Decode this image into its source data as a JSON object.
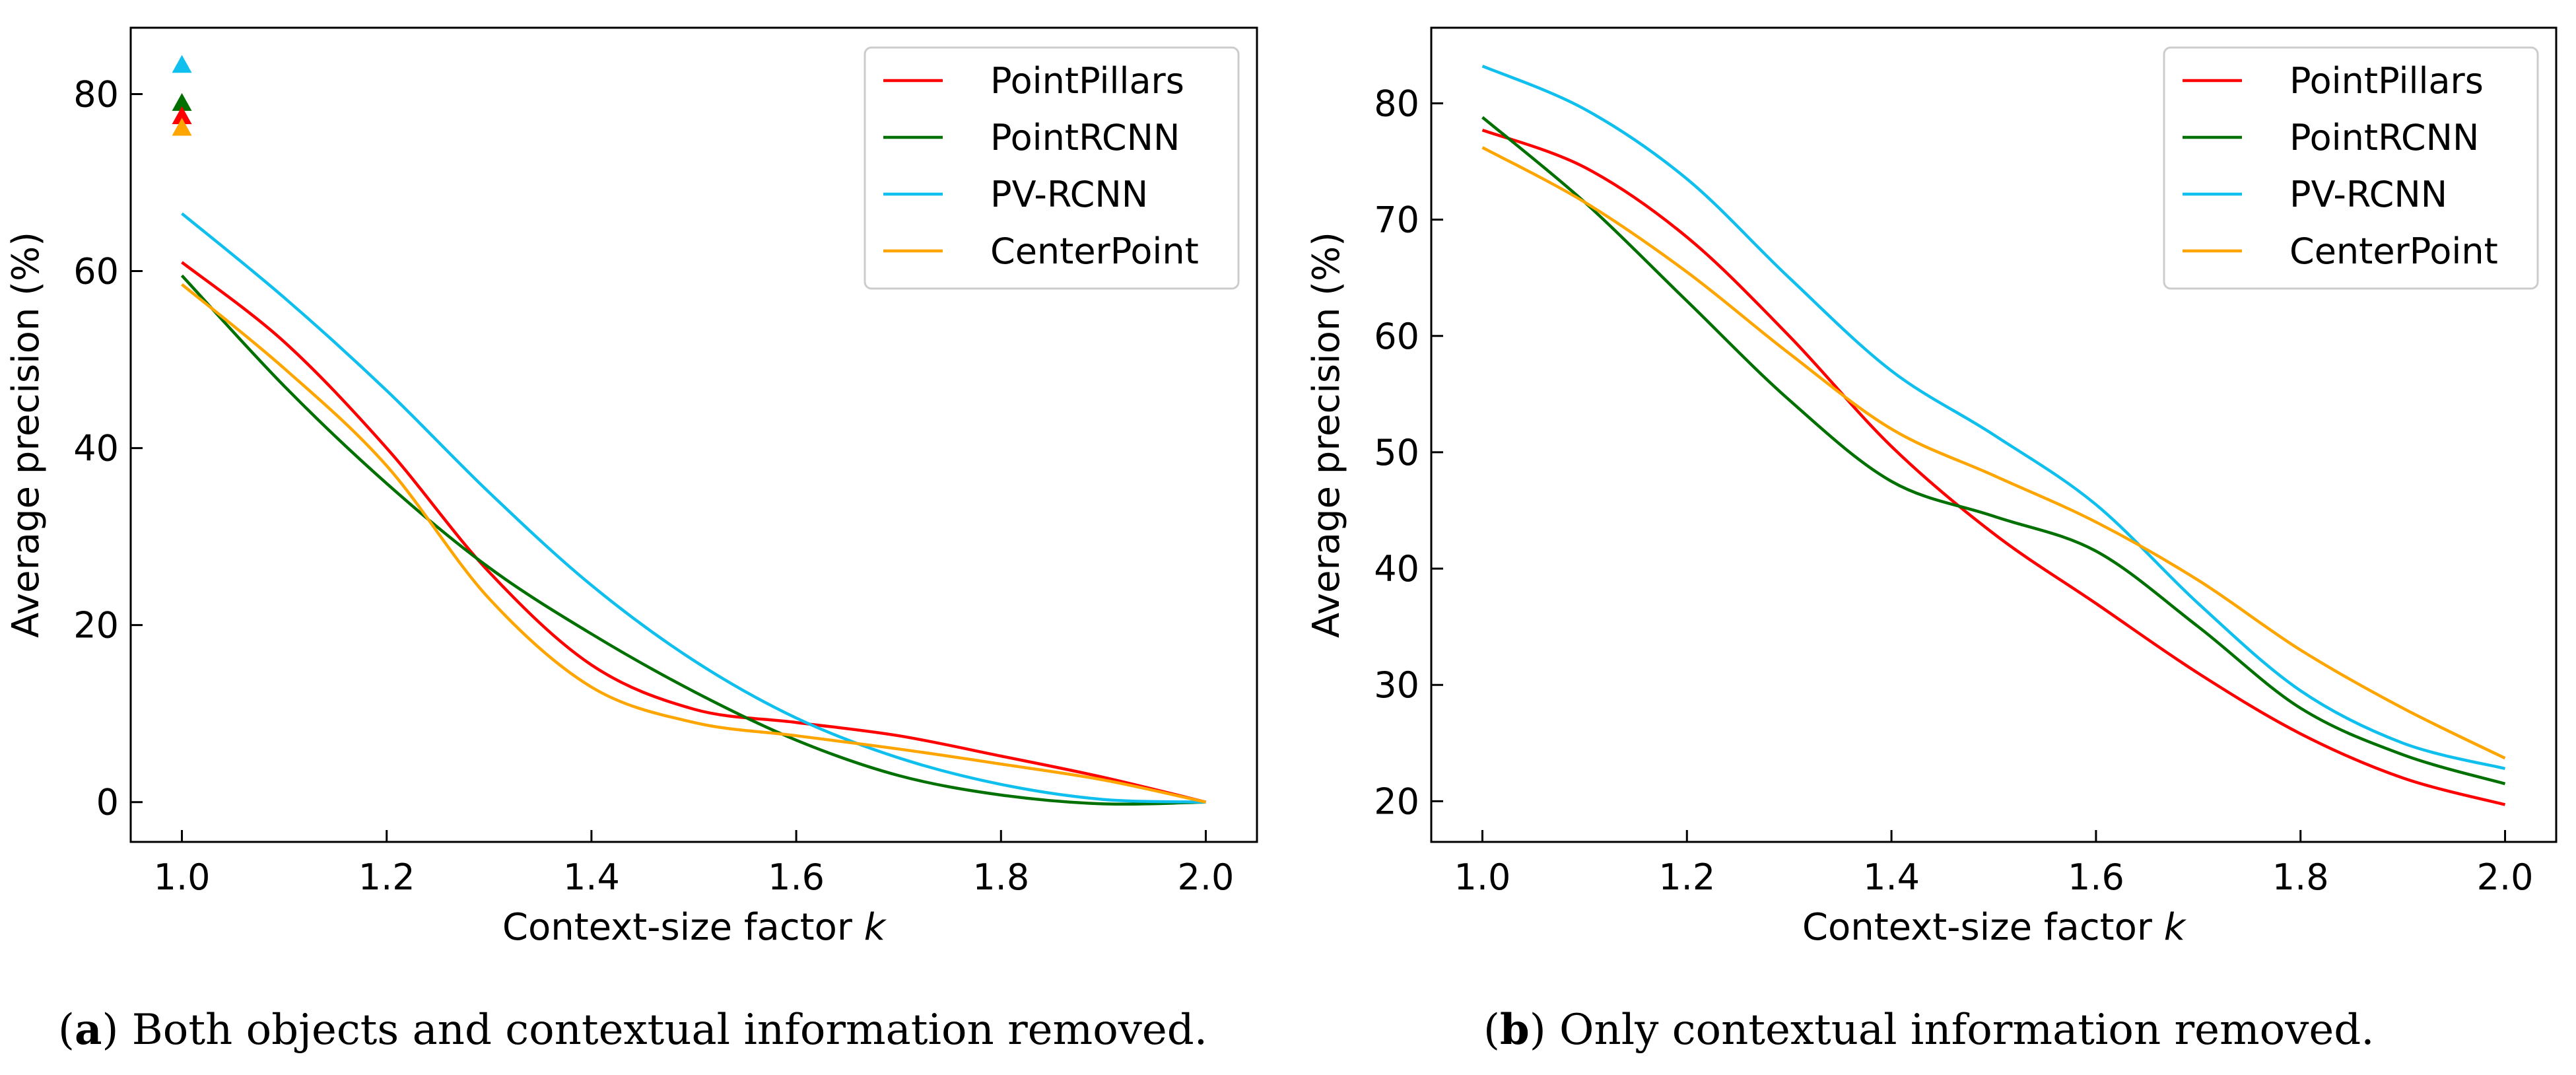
{
  "chart_data": [
    {
      "type": "line",
      "panel": "a",
      "xlabel": "Context-size factor",
      "xlabel_var": "k",
      "ylabel": "Average precision (%)",
      "xlim": [
        0.95,
        2.05
      ],
      "ylim": [
        -4.5,
        87.5
      ],
      "xticks": [
        1.0,
        1.2,
        1.4,
        1.6,
        1.8,
        2.0
      ],
      "xtick_labels": [
        "1.0",
        "1.2",
        "1.4",
        "1.6",
        "1.8",
        "2.0"
      ],
      "yticks": [
        0,
        20,
        40,
        60,
        80
      ],
      "ytick_labels": [
        "0",
        "20",
        "40",
        "60",
        "80"
      ],
      "legend_position": "top-right",
      "series": [
        {
          "name": "PointPillars",
          "color": "#ff0000",
          "x": [
            1.0,
            1.1,
            1.2,
            1.3,
            1.4,
            1.5,
            1.6,
            1.7,
            1.8,
            1.9,
            2.0
          ],
          "y": [
            61,
            52,
            40,
            26,
            15.5,
            10.5,
            9,
            7.5,
            5.2,
            2.8,
            0
          ]
        },
        {
          "name": "PointRCNN",
          "color": "#007000",
          "x": [
            1.0,
            1.1,
            1.2,
            1.3,
            1.4,
            1.5,
            1.6,
            1.7,
            1.8,
            1.9,
            2.0
          ],
          "y": [
            59.5,
            47,
            36,
            26.5,
            19,
            12.5,
            7,
            3,
            0.8,
            -0.2,
            0
          ]
        },
        {
          "name": "PV-RCNN",
          "color": "#0fbfee",
          "x": [
            1.0,
            1.1,
            1.2,
            1.3,
            1.4,
            1.5,
            1.6,
            1.7,
            1.8,
            1.9,
            2.0
          ],
          "y": [
            66.5,
            57,
            46.5,
            35,
            24.5,
            16,
            9.5,
            5,
            2,
            0.3,
            0
          ]
        },
        {
          "name": "CenterPoint",
          "color": "#ffa500",
          "x": [
            1.0,
            1.1,
            1.2,
            1.3,
            1.4,
            1.5,
            1.6,
            1.7,
            1.8,
            1.9,
            2.0
          ],
          "y": [
            58.5,
            49,
            38,
            23,
            13,
            9,
            7.5,
            6,
            4.3,
            2.5,
            0
          ]
        }
      ],
      "markers": [
        {
          "name": "PV-RCNN",
          "color": "#0fbfee",
          "x": 1.0,
          "y": 83.3
        },
        {
          "name": "PointRCNN",
          "color": "#007000",
          "x": 1.0,
          "y": 79
        },
        {
          "name": "PointPillars",
          "color": "#ff0000",
          "x": 1.0,
          "y": 77.5
        },
        {
          "name": "CenterPoint",
          "color": "#ffa500",
          "x": 1.0,
          "y": 76.2
        }
      ]
    },
    {
      "type": "line",
      "panel": "b",
      "xlabel": "Context-size factor",
      "xlabel_var": "k",
      "ylabel": "Average precision (%)",
      "xlim": [
        0.95,
        2.05
      ],
      "ylim": [
        16.5,
        86.5
      ],
      "xticks": [
        1.0,
        1.2,
        1.4,
        1.6,
        1.8,
        2.0
      ],
      "xtick_labels": [
        "1.0",
        "1.2",
        "1.4",
        "1.6",
        "1.8",
        "2.0"
      ],
      "yticks": [
        20,
        30,
        40,
        50,
        60,
        70,
        80
      ],
      "ytick_labels": [
        "20",
        "30",
        "40",
        "50",
        "60",
        "70",
        "80"
      ],
      "legend_position": "top-right",
      "series": [
        {
          "name": "PointPillars",
          "color": "#ff0000",
          "x": [
            1.0,
            1.1,
            1.2,
            1.3,
            1.4,
            1.5,
            1.6,
            1.7,
            1.8,
            1.9,
            2.0
          ],
          "y": [
            77.7,
            74.5,
            68.5,
            60,
            50.5,
            43,
            37,
            31,
            25.8,
            22,
            19.7
          ]
        },
        {
          "name": "PointRCNN",
          "color": "#007000",
          "x": [
            1.0,
            1.1,
            1.2,
            1.3,
            1.4,
            1.5,
            1.6,
            1.7,
            1.8,
            1.9,
            2.0
          ],
          "y": [
            78.8,
            71.5,
            63,
            54.5,
            47.5,
            44.5,
            41.5,
            35,
            28,
            24,
            21.5
          ]
        },
        {
          "name": "PV-RCNN",
          "color": "#0fbfee",
          "x": [
            1.0,
            1.1,
            1.2,
            1.3,
            1.4,
            1.5,
            1.6,
            1.7,
            1.8,
            1.9,
            2.0
          ],
          "y": [
            83.2,
            79.5,
            73.5,
            65,
            57,
            51.5,
            45.5,
            37,
            29.5,
            25,
            22.8
          ]
        },
        {
          "name": "CenterPoint",
          "color": "#ffa500",
          "x": [
            1.0,
            1.1,
            1.2,
            1.3,
            1.4,
            1.5,
            1.6,
            1.7,
            1.8,
            1.9,
            2.0
          ],
          "y": [
            76.2,
            71.5,
            65.5,
            58.5,
            52,
            48,
            44,
            39,
            33,
            28,
            23.7
          ]
        }
      ],
      "markers": []
    }
  ],
  "captions": [
    {
      "label": "a",
      "text": ") Both objects and contextual information removed."
    },
    {
      "label": "b",
      "text": ") Only contextual information removed."
    }
  ]
}
